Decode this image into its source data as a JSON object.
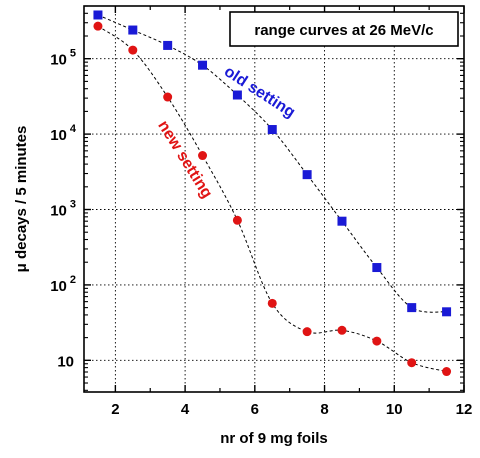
{
  "chart_data": {
    "type": "scatter",
    "title": "",
    "xlabel": "nr of 9 mg foils",
    "ylabel": "μ decays / 5 minutes",
    "xlim": [
      1.1,
      12.0
    ],
    "ylim": [
      3.8,
      500000
    ],
    "yscale": "log",
    "grid": true,
    "x_ticks": [
      2,
      4,
      6,
      8,
      10,
      12
    ],
    "y_ticks": [
      {
        "value": 10,
        "base": "10",
        "exp": ""
      },
      {
        "value": 100,
        "base": "10",
        "exp": "2"
      },
      {
        "value": 1000,
        "base": "10",
        "exp": "3"
      },
      {
        "value": 10000,
        "base": "10",
        "exp": "4"
      },
      {
        "value": 100000,
        "base": "10",
        "exp": "5"
      }
    ],
    "legend_box": {
      "text": "range curves at 26 MeV/c",
      "placement": "top-right"
    },
    "series": [
      {
        "name": "old setting",
        "color": "#1a1ad6",
        "marker": "square",
        "x": [
          1.5,
          2.5,
          3.5,
          4.5,
          5.5,
          6.5,
          7.5,
          8.5,
          9.5,
          10.5,
          11.5
        ],
        "y": [
          380000,
          240000,
          150000,
          82000,
          33000,
          11500,
          2900,
          700,
          170,
          50,
          44
        ]
      },
      {
        "name": "new setting",
        "color": "#e01414",
        "marker": "circle",
        "x": [
          1.5,
          2.5,
          3.5,
          4.5,
          5.5,
          6.5,
          7.5,
          8.5,
          9.5,
          10.5,
          11.5
        ],
        "y": [
          270000,
          130000,
          31000,
          5200,
          720,
          57,
          24,
          25,
          18,
          9.3,
          7.1
        ]
      }
    ]
  }
}
